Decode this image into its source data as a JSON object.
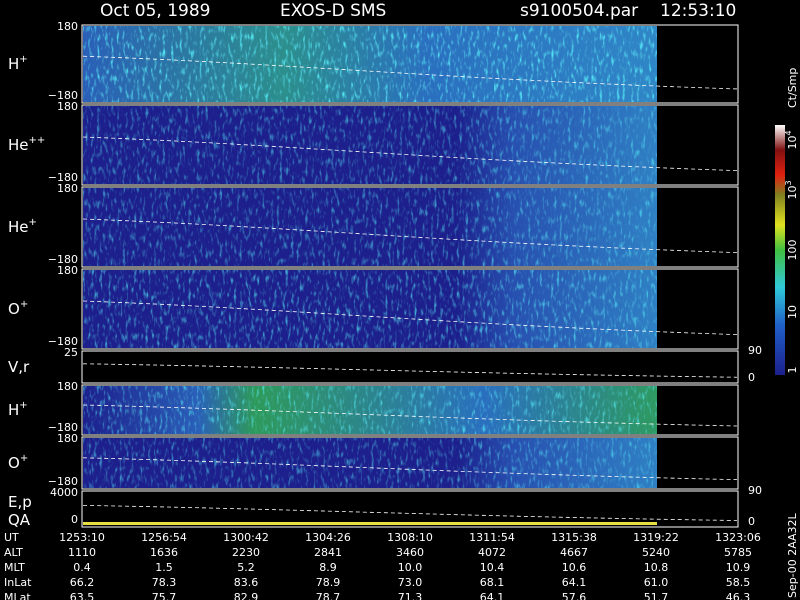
{
  "header": {
    "date": "Oct 05, 1989",
    "instrument": "EXOS-D SMS",
    "file": "s9100504.par",
    "time": "12:53:10"
  },
  "panels": [
    {
      "label": "H",
      "sup": "+",
      "ticks": [
        "180",
        "−180"
      ]
    },
    {
      "label": "He",
      "sup": "++",
      "ticks": [
        "180",
        "−180"
      ]
    },
    {
      "label": "He",
      "sup": "+",
      "ticks": [
        "180",
        "−180"
      ]
    },
    {
      "label": "O",
      "sup": "+",
      "ticks": [
        "180",
        "−180"
      ]
    },
    {
      "label": "V,r",
      "ticks": [
        "25"
      ],
      "right_ticks": [
        "90",
        "0"
      ]
    },
    {
      "label": "H",
      "sup": "+",
      "ticks": [
        "180",
        "−180"
      ]
    },
    {
      "label": "O",
      "sup": "+",
      "ticks": [
        "180",
        "−180"
      ]
    },
    {
      "label": "E,p",
      "label2": "QA",
      "ticks": [
        "4000",
        "0"
      ],
      "right_ticks": [
        "90",
        "0"
      ]
    }
  ],
  "colorbar": {
    "title": "Ct/Smp",
    "labels": [
      {
        "base": "10",
        "sup": "4"
      },
      {
        "base": "10",
        "sup": "3"
      },
      {
        "base": "100"
      },
      {
        "base": "10"
      },
      {
        "base": "1"
      }
    ]
  },
  "table": {
    "rows": [
      {
        "label": "UT",
        "cells": [
          "1253:10",
          "1256:54",
          "1300:42",
          "1304:26",
          "1308:10",
          "1311:54",
          "1315:38",
          "1319:22",
          "1323:06"
        ]
      },
      {
        "label": "ALT",
        "cells": [
          "1110",
          "1636",
          "2230",
          "2841",
          "3460",
          "4072",
          "4667",
          "5240",
          "5785"
        ]
      },
      {
        "label": "MLT",
        "cells": [
          "0.4",
          "1.5",
          "5.2",
          "8.9",
          "10.0",
          "10.4",
          "10.6",
          "10.8",
          "10.9"
        ]
      },
      {
        "label": "InLat",
        "cells": [
          "66.2",
          "78.3",
          "83.6",
          "78.9",
          "73.0",
          "68.1",
          "64.1",
          "61.0",
          "58.5"
        ]
      },
      {
        "label": "MLat",
        "cells": [
          "63.5",
          "75.7",
          "82.9",
          "78.7",
          "71.3",
          "64.1",
          "57.6",
          "51.7",
          "46.3"
        ]
      }
    ]
  },
  "footer": "Sep-00 2AA32L"
}
